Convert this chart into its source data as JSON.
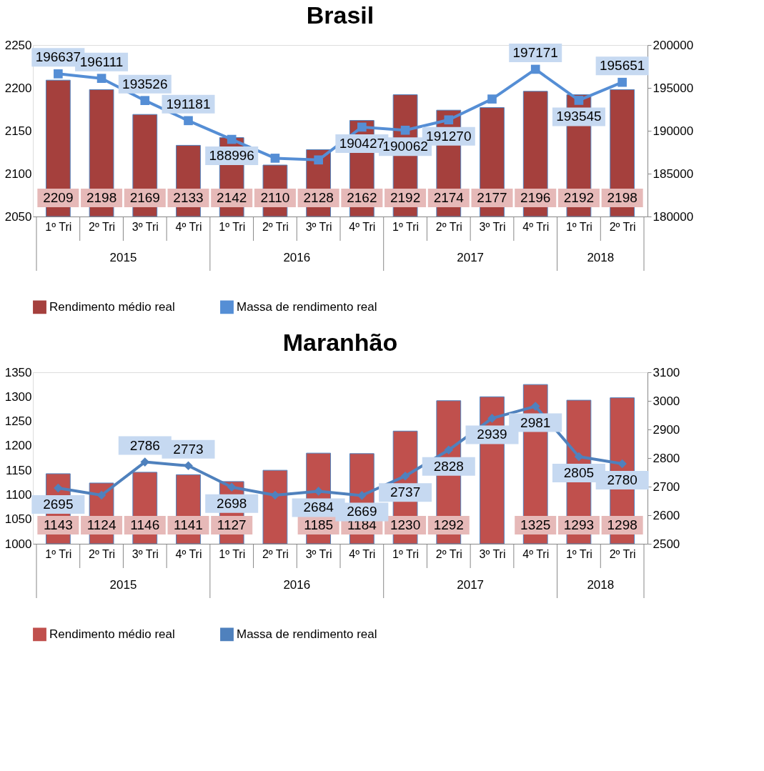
{
  "chart_data": [
    {
      "type": "bar",
      "title": "Brasil",
      "categories": [
        "1º Tri",
        "2º Tri",
        "3º Tri",
        "4º Tri",
        "1º Tri",
        "2º Tri",
        "3º Tri",
        "4º Tri",
        "1º Tri",
        "2º Tri",
        "3º Tri",
        "4º Tri",
        "1º Tri",
        "2º Tri"
      ],
      "annotations": [
        "2015",
        "2016",
        "2017",
        "2018"
      ],
      "ylim": [
        2050,
        2250
      ],
      "yticks": [
        2050,
        2100,
        2150,
        2200,
        2250
      ],
      "y2lim": [
        180000,
        200000
      ],
      "y2ticks": [
        180000,
        185000,
        190000,
        195000,
        200000
      ],
      "grid": false,
      "legend": "bottom",
      "series": [
        {
          "name": "Rendimento médio real",
          "color": "#a5403d",
          "values": [
            2209,
            2198,
            2169,
            2133,
            2142,
            2110,
            2128,
            2162,
            2192,
            2174,
            2177,
            2196,
            2192,
            2198
          ],
          "value_labels": [
            "2209",
            "2198",
            "2169",
            "2133",
            "2142",
            "2110",
            "2128",
            "2162",
            "2192",
            "2174",
            "2177",
            "2196",
            "2192",
            "2198"
          ]
        },
        {
          "name": "Massa de rendimento real",
          "type": "line",
          "axis": "y2",
          "color": "#558ed5",
          "marker": "square",
          "values": [
            196637,
            196111,
            193526,
            191181,
            188996,
            186800,
            186600,
            190427,
            190062,
            191270,
            193700,
            197171,
            193545,
            195651
          ],
          "value_labels": [
            "196637",
            "196111",
            "193526",
            "191181",
            "188996",
            null,
            null,
            "190427",
            "190062",
            "191270",
            null,
            "197171",
            "193545",
            "195651"
          ]
        }
      ]
    },
    {
      "type": "bar",
      "title": "Maranhão",
      "categories": [
        "1º Tri",
        "2º Tri",
        "3º Tri",
        "4º Tri",
        "1º Tri",
        "2º Tri",
        "3º Tri",
        "4º Tri",
        "1º Tri",
        "2º Tri",
        "3º Tri",
        "4º Tri",
        "1º Tri",
        "2º Tri"
      ],
      "annotations": [
        "2015",
        "2016",
        "2017",
        "2018"
      ],
      "ylim": [
        1000,
        1350
      ],
      "yticks": [
        1000,
        1050,
        1100,
        1150,
        1200,
        1250,
        1300,
        1350
      ],
      "y2lim": [
        2500,
        3100
      ],
      "y2ticks": [
        2500,
        2600,
        2700,
        2800,
        2900,
        3000,
        3100
      ],
      "grid": false,
      "legend": "bottom",
      "series": [
        {
          "name": "Rendimento médio real",
          "color": "#c0504d",
          "values": [
            1143,
            1124,
            1146,
            1141,
            1127,
            1150,
            1185,
            1184,
            1230,
            1292,
            1300,
            1325,
            1293,
            1298
          ],
          "value_labels": [
            "1143",
            "1124",
            "1146",
            "1141",
            "1127",
            null,
            "1185",
            "1184",
            "1230",
            "1292",
            null,
            "1325",
            "1293",
            "1298"
          ]
        },
        {
          "name": "Massa de rendimento real",
          "type": "line",
          "axis": "y2",
          "color": "#4f81bd",
          "marker": "diamond",
          "values": [
            2695,
            2670,
            2786,
            2773,
            2698,
            2670,
            2684,
            2669,
            2737,
            2828,
            2939,
            2981,
            2805,
            2780
          ],
          "value_labels": [
            "2695",
            null,
            "2786",
            "2773",
            "2698",
            null,
            "2684",
            "2669",
            "2737",
            "2828",
            "2939",
            "2981",
            "2805",
            "2780"
          ]
        }
      ]
    }
  ]
}
